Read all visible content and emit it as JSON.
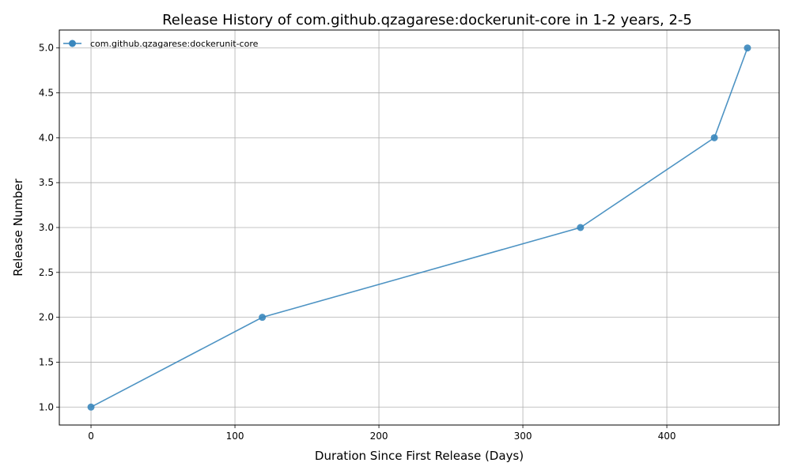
{
  "chart_data": {
    "type": "line",
    "title": "Release History of com.github.qzagarese:dockerunit-core in 1-2 years, 2-5",
    "xlabel": "Duration Since First Release (Days)",
    "ylabel": "Release Number",
    "xlim": [
      -22,
      478
    ],
    "ylim": [
      0.8,
      5.2
    ],
    "xticks": [
      0,
      100,
      200,
      300,
      400
    ],
    "yticks": [
      1.0,
      1.5,
      2.0,
      2.5,
      3.0,
      3.5,
      4.0,
      4.5,
      5.0
    ],
    "grid": true,
    "legend_position": "top-left",
    "series": [
      {
        "name": "com.github.qzagarese:dockerunit-core",
        "color": "#3a87bd",
        "marker": "circle",
        "x": [
          0,
          119,
          340,
          433,
          456
        ],
        "y": [
          1,
          2,
          3,
          4,
          5
        ]
      }
    ]
  }
}
